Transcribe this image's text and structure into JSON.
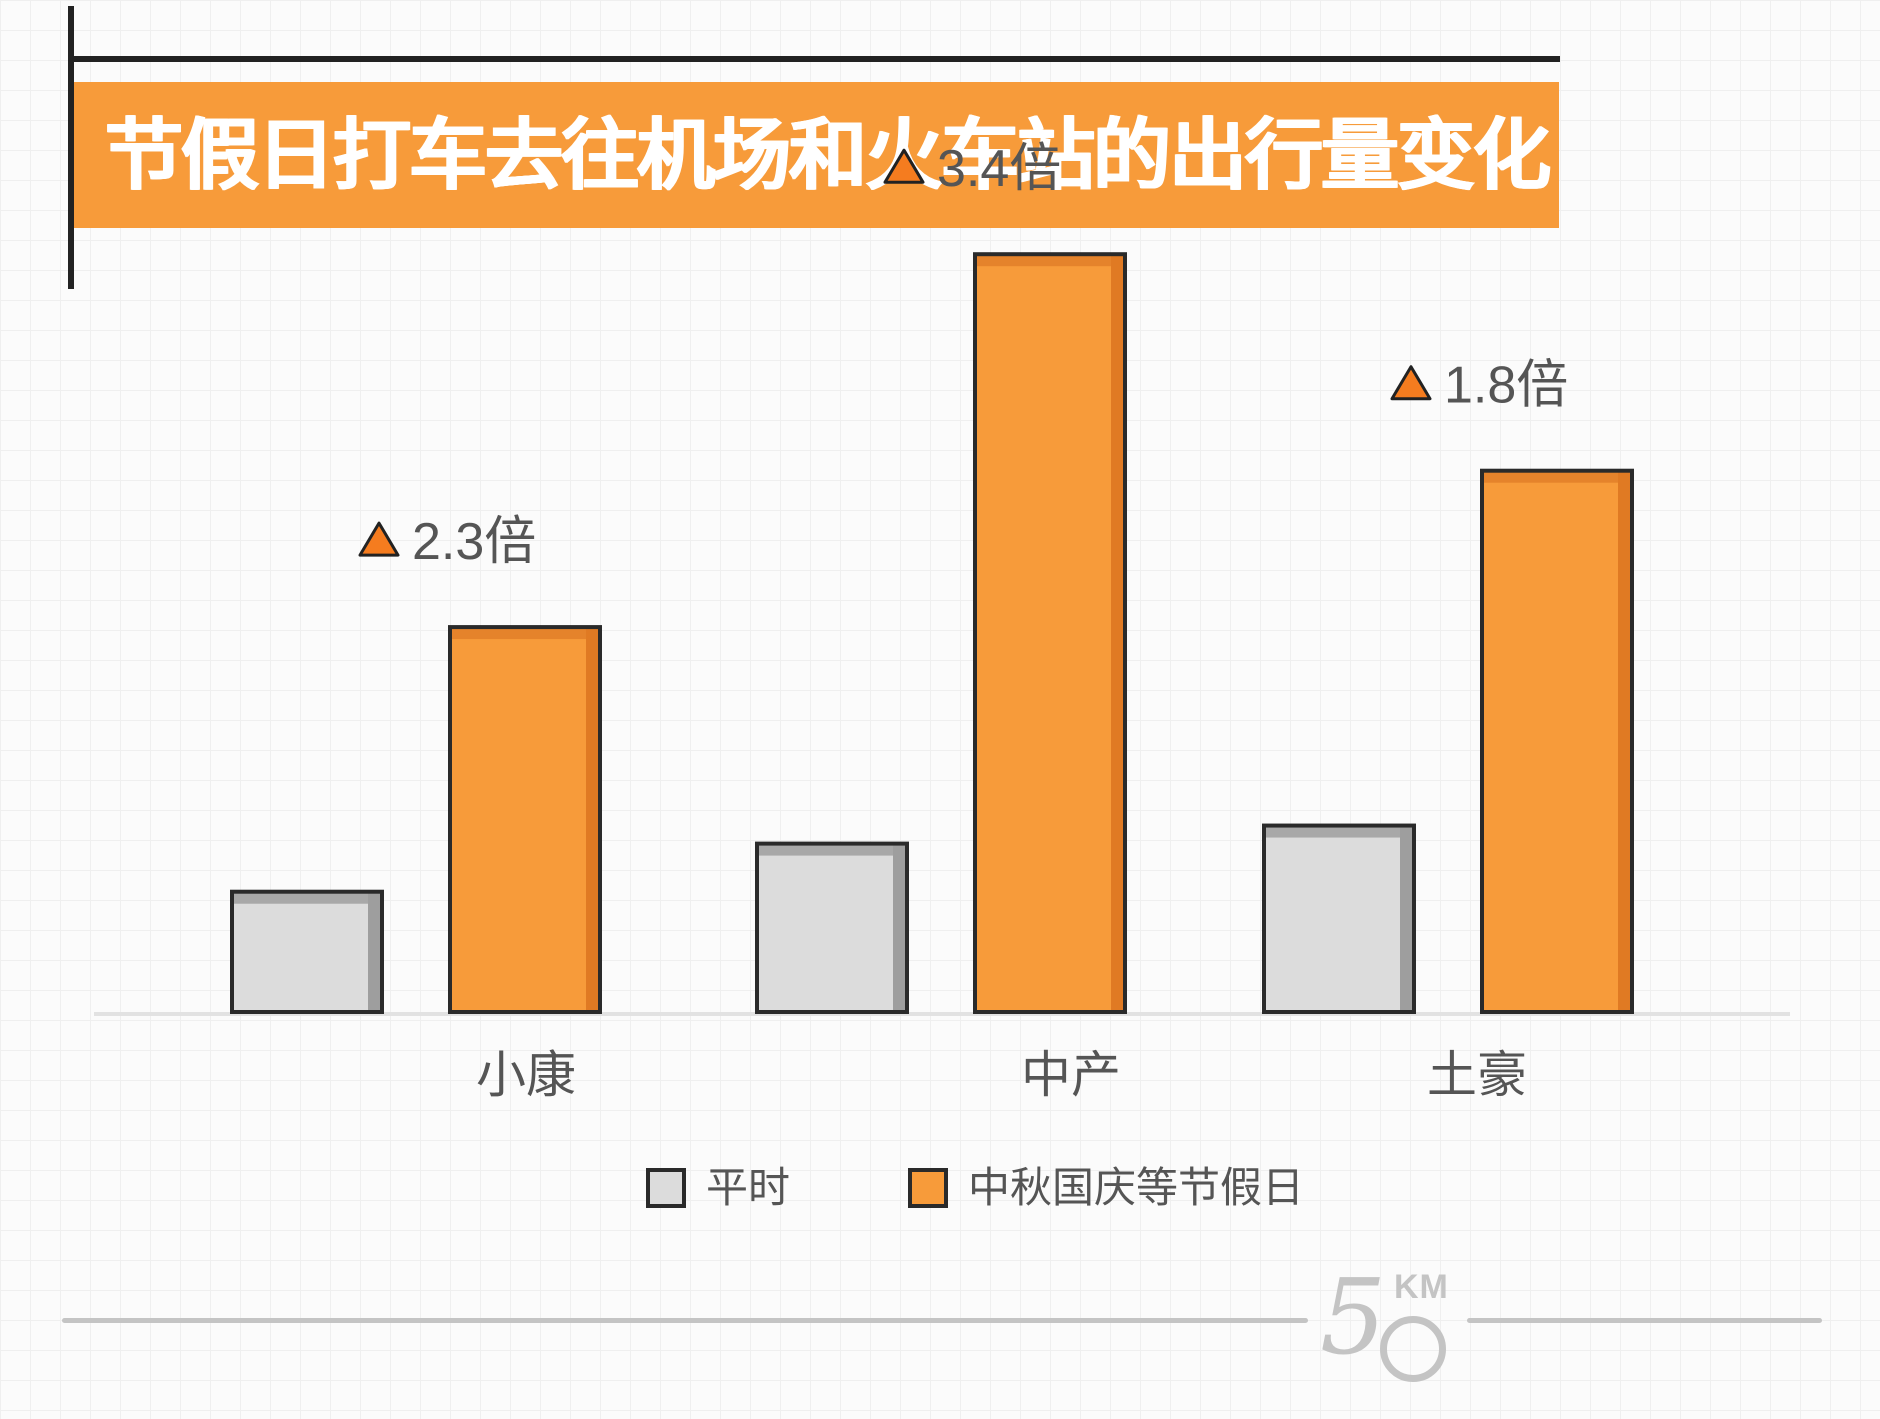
{
  "header": {
    "title": "节假日打车去往机场和火车站的出行量变化"
  },
  "chart_data": {
    "type": "bar",
    "categories": [
      "小康",
      "中产",
      "土豪"
    ],
    "series": [
      {
        "name": "平时",
        "values": [
          1.0,
          1.4,
          1.55
        ]
      },
      {
        "name": "中秋国庆等节假日",
        "values": [
          3.2,
          6.3,
          4.5
        ]
      }
    ],
    "annotations": [
      "2.3倍",
      "3.4倍",
      "1.8倍"
    ],
    "title": "节假日打车去往机场和火车站的出行量变化",
    "xlabel": "",
    "ylabel": "",
    "ylim": [
      0,
      7
    ],
    "grid": false,
    "legend": "bottom-center"
  },
  "colors": {
    "normal_fill": "#dcdcdc",
    "normal_top": "#a8a8a8",
    "holiday_fill": "#f79b3a",
    "holiday_top": "#e5832b",
    "outline": "#2a2a2a",
    "marker": "#f57c1f",
    "text": "#555555"
  },
  "footer": {
    "logo_number": "5",
    "logo_unit": "KM"
  }
}
